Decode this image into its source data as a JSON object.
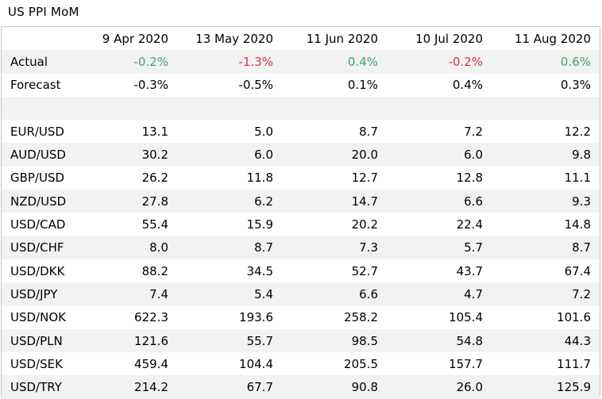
{
  "title": "US PPI MoM",
  "columns": [
    "9 Apr 2020",
    "13 May 2020",
    "11 Jun 2020",
    "10 Jul 2020",
    "11 Aug 2020"
  ],
  "actual": {
    "label": "Actual",
    "values": [
      "-0.2%",
      "-1.3%",
      "0.4%",
      "-0.2%",
      "0.6%"
    ],
    "directions": [
      "up",
      "down",
      "up",
      "down",
      "up"
    ]
  },
  "forecast": {
    "label": "Forecast",
    "values": [
      "-0.3%",
      "-0.5%",
      "0.1%",
      "0.4%",
      "0.3%"
    ]
  },
  "colors": {
    "up": "#3aa76d",
    "down": "#d9363e",
    "shade": "#f2f2f2"
  },
  "pairs": [
    {
      "label": "EUR/USD",
      "values": [
        "13.1",
        "5.0",
        "8.7",
        "7.2",
        "12.2"
      ]
    },
    {
      "label": "AUD/USD",
      "values": [
        "30.2",
        "6.0",
        "20.0",
        "6.0",
        "9.8"
      ]
    },
    {
      "label": "GBP/USD",
      "values": [
        "26.2",
        "11.8",
        "12.7",
        "12.8",
        "11.1"
      ]
    },
    {
      "label": "NZD/USD",
      "values": [
        "27.8",
        "6.2",
        "14.7",
        "6.6",
        "9.3"
      ]
    },
    {
      "label": "USD/CAD",
      "values": [
        "55.4",
        "15.9",
        "20.2",
        "22.4",
        "14.8"
      ]
    },
    {
      "label": "USD/CHF",
      "values": [
        "8.0",
        "8.7",
        "7.3",
        "5.7",
        "8.7"
      ]
    },
    {
      "label": "USD/DKK",
      "values": [
        "88.2",
        "34.5",
        "52.7",
        "43.7",
        "67.4"
      ]
    },
    {
      "label": "USD/JPY",
      "values": [
        "7.4",
        "5.4",
        "6.6",
        "4.7",
        "7.2"
      ]
    },
    {
      "label": "USD/NOK",
      "values": [
        "622.3",
        "193.6",
        "258.2",
        "105.4",
        "101.6"
      ]
    },
    {
      "label": "USD/PLN",
      "values": [
        "121.6",
        "55.7",
        "98.5",
        "54.8",
        "44.3"
      ]
    },
    {
      "label": "USD/SEK",
      "values": [
        "459.4",
        "104.4",
        "205.5",
        "157.7",
        "111.7"
      ]
    },
    {
      "label": "USD/TRY",
      "values": [
        "214.2",
        "67.7",
        "90.8",
        "26.0",
        "125.9"
      ]
    }
  ]
}
